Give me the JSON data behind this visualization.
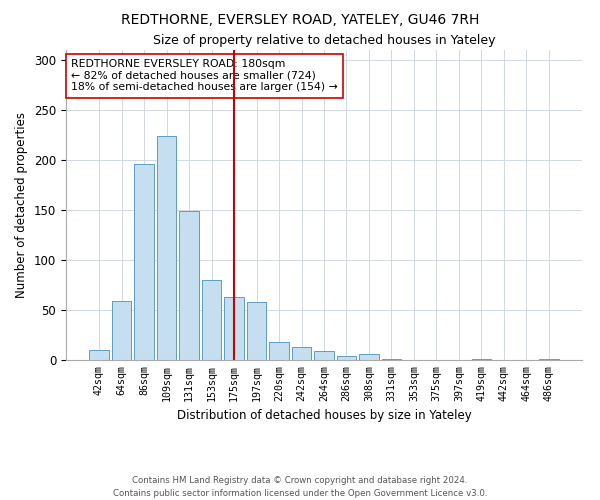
{
  "title": "REDTHORNE, EVERSLEY ROAD, YATELEY, GU46 7RH",
  "subtitle": "Size of property relative to detached houses in Yateley",
  "xlabel": "Distribution of detached houses by size in Yateley",
  "ylabel": "Number of detached properties",
  "categories": [
    "42sqm",
    "64sqm",
    "86sqm",
    "109sqm",
    "131sqm",
    "153sqm",
    "175sqm",
    "197sqm",
    "220sqm",
    "242sqm",
    "264sqm",
    "286sqm",
    "308sqm",
    "331sqm",
    "353sqm",
    "375sqm",
    "397sqm",
    "419sqm",
    "442sqm",
    "464sqm",
    "486sqm"
  ],
  "values": [
    10,
    59,
    196,
    224,
    149,
    80,
    63,
    58,
    18,
    13,
    9,
    4,
    6,
    1,
    0,
    0,
    0,
    1,
    0,
    0,
    1
  ],
  "bar_color": "#c6dff0",
  "bar_edge_color": "#5a9ec9",
  "vline_x_index": 6,
  "vline_color": "#cc0000",
  "annotation_text": "REDTHORNE EVERSLEY ROAD: 180sqm\n← 82% of detached houses are smaller (724)\n18% of semi-detached houses are larger (154) →",
  "annotation_box_color": "#ffffff",
  "annotation_box_edge_color": "#cc0000",
  "ylim": [
    0,
    310
  ],
  "yticks": [
    0,
    50,
    100,
    150,
    200,
    250,
    300
  ],
  "footnote1": "Contains HM Land Registry data © Crown copyright and database right 2024.",
  "footnote2": "Contains public sector information licensed under the Open Government Licence v3.0."
}
